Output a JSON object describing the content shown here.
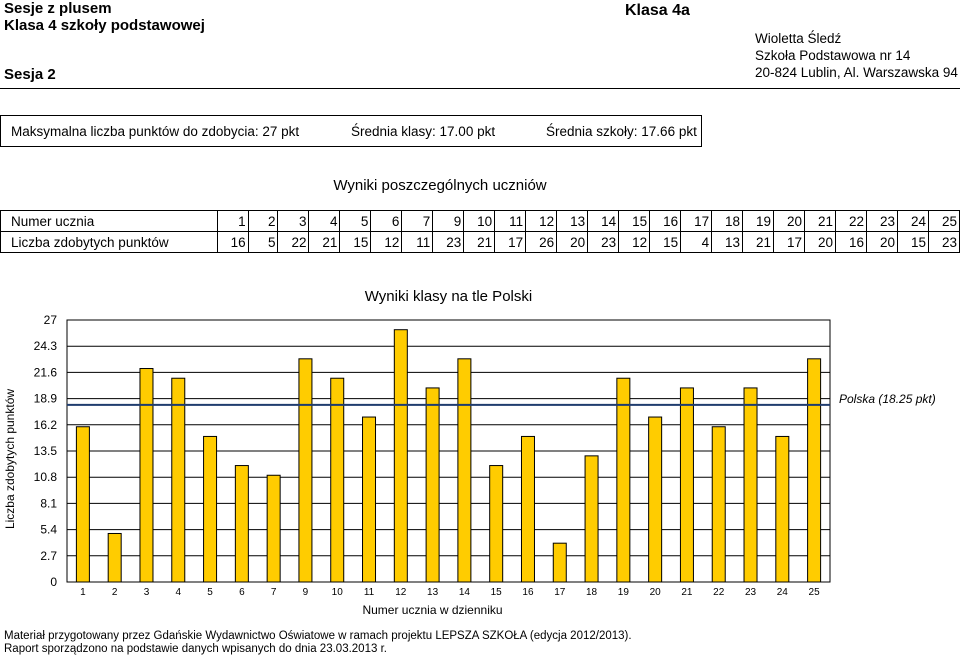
{
  "header": {
    "title": "Sesje z plusem",
    "subtitle": "Klasa 4 szkoły podstawowej",
    "session": "Sesja 2",
    "class_name": "Klasa 4a",
    "teacher": "Wioletta Śledź",
    "school": "Szkoła Podstawowa nr 14",
    "address": "20-824 Lublin, Al. Warszawska 94"
  },
  "stats": {
    "max_points": "Maksymalna liczba punktów do zdobycia: 27 pkt",
    "class_avg": "Średnia klasy: 17.00 pkt",
    "school_avg": "Średnia szkoły: 17.66 pkt"
  },
  "results": {
    "title": "Wyniki poszczególnych uczniów",
    "row1_label": "Numer ucznia",
    "row2_label": "Liczba zdobytych punktów",
    "student_numbers": [
      "1",
      "2",
      "3",
      "4",
      "5",
      "6",
      "7",
      "9",
      "10",
      "11",
      "12",
      "13",
      "14",
      "15",
      "16",
      "17",
      "18",
      "19",
      "20",
      "21",
      "22",
      "23",
      "24",
      "25"
    ],
    "points": [
      "16",
      "5",
      "22",
      "21",
      "15",
      "12",
      "11",
      "23",
      "21",
      "17",
      "26",
      "20",
      "23",
      "12",
      "15",
      "4",
      "13",
      "21",
      "17",
      "20",
      "16",
      "20",
      "15",
      "23"
    ]
  },
  "chart_data": {
    "type": "bar",
    "title": "Wyniki klasy na tle Polski",
    "xlabel": "Numer ucznia w dzienniku",
    "ylabel": "Liczba zdobytych punktów",
    "categories": [
      "1",
      "2",
      "3",
      "4",
      "5",
      "6",
      "7",
      "9",
      "10",
      "11",
      "12",
      "13",
      "14",
      "15",
      "16",
      "17",
      "18",
      "19",
      "20",
      "21",
      "22",
      "23",
      "24",
      "25"
    ],
    "values": [
      16,
      5,
      22,
      21,
      15,
      12,
      11,
      23,
      21,
      17,
      26,
      20,
      23,
      12,
      15,
      4,
      13,
      21,
      17,
      20,
      16,
      20,
      15,
      23
    ],
    "x_tick_labels": [
      "1",
      "2",
      "3",
      "4",
      "5",
      "6",
      "7",
      "9",
      "10",
      "11",
      "12",
      "13",
      "14",
      "15",
      "16",
      "17",
      "18",
      "19",
      "20",
      "21",
      "22",
      "23",
      "24",
      "25"
    ],
    "y_ticks": [
      0,
      2.7,
      5.4,
      8.1,
      10.8,
      13.5,
      16.2,
      18.9,
      21.6,
      24.3,
      27
    ],
    "y_tick_labels": [
      "0",
      "2.7",
      "5.4",
      "8.1",
      "10.8",
      "13.5",
      "16.2",
      "18.9",
      "21.6",
      "24.3",
      "27"
    ],
    "ylim": [
      0,
      27
    ],
    "grid": true,
    "reference_line": {
      "value": 18.25,
      "label": "Polska (18.25 pkt)"
    },
    "colors": {
      "bar": "#FFCC00",
      "bar_border": "#000000",
      "reference": "#1F3C6E",
      "grid": "#000000"
    }
  },
  "footer": {
    "line1": "Materiał przygotowany przez Gdańskie Wydawnictwo Oświatowe w ramach projektu LEPSZA SZKOŁA (edycja 2012/2013).",
    "line2": "Raport sporządzono na podstawie danych wpisanych do dnia 23.03.2013 r."
  }
}
